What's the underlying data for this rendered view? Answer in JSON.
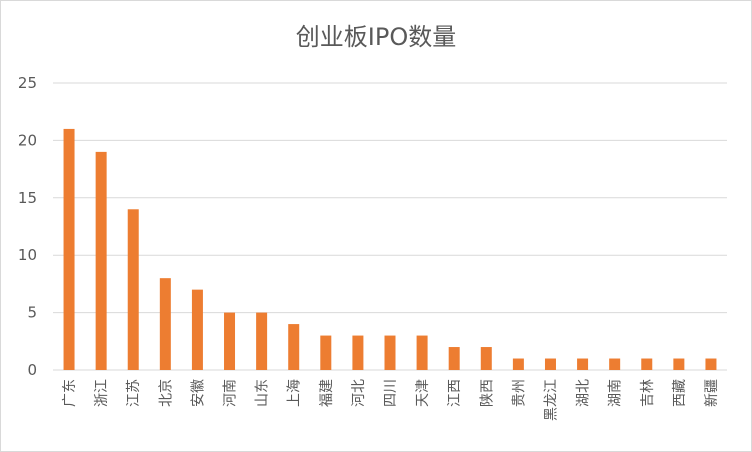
{
  "chart_data": {
    "type": "bar",
    "title": "创业板IPO数量",
    "categories": [
      "广东",
      "浙江",
      "江苏",
      "北京",
      "安徽",
      "河南",
      "山东",
      "上海",
      "福建",
      "河北",
      "四川",
      "天津",
      "江西",
      "陕西",
      "贵州",
      "黑龙江",
      "湖北",
      "湖南",
      "吉林",
      "西藏",
      "新疆"
    ],
    "values": [
      21,
      19,
      14,
      8,
      7,
      5,
      5,
      4,
      3,
      3,
      3,
      3,
      2,
      2,
      1,
      1,
      1,
      1,
      1,
      1,
      1
    ],
    "xlabel": "",
    "ylabel": "",
    "ylim": [
      0,
      25
    ],
    "yticks": [
      "0",
      "5",
      "10",
      "15",
      "20",
      "25"
    ],
    "grid": true,
    "legend": "none",
    "bar_color": "#ed7d31",
    "grid_color": "#d9d9d9"
  }
}
